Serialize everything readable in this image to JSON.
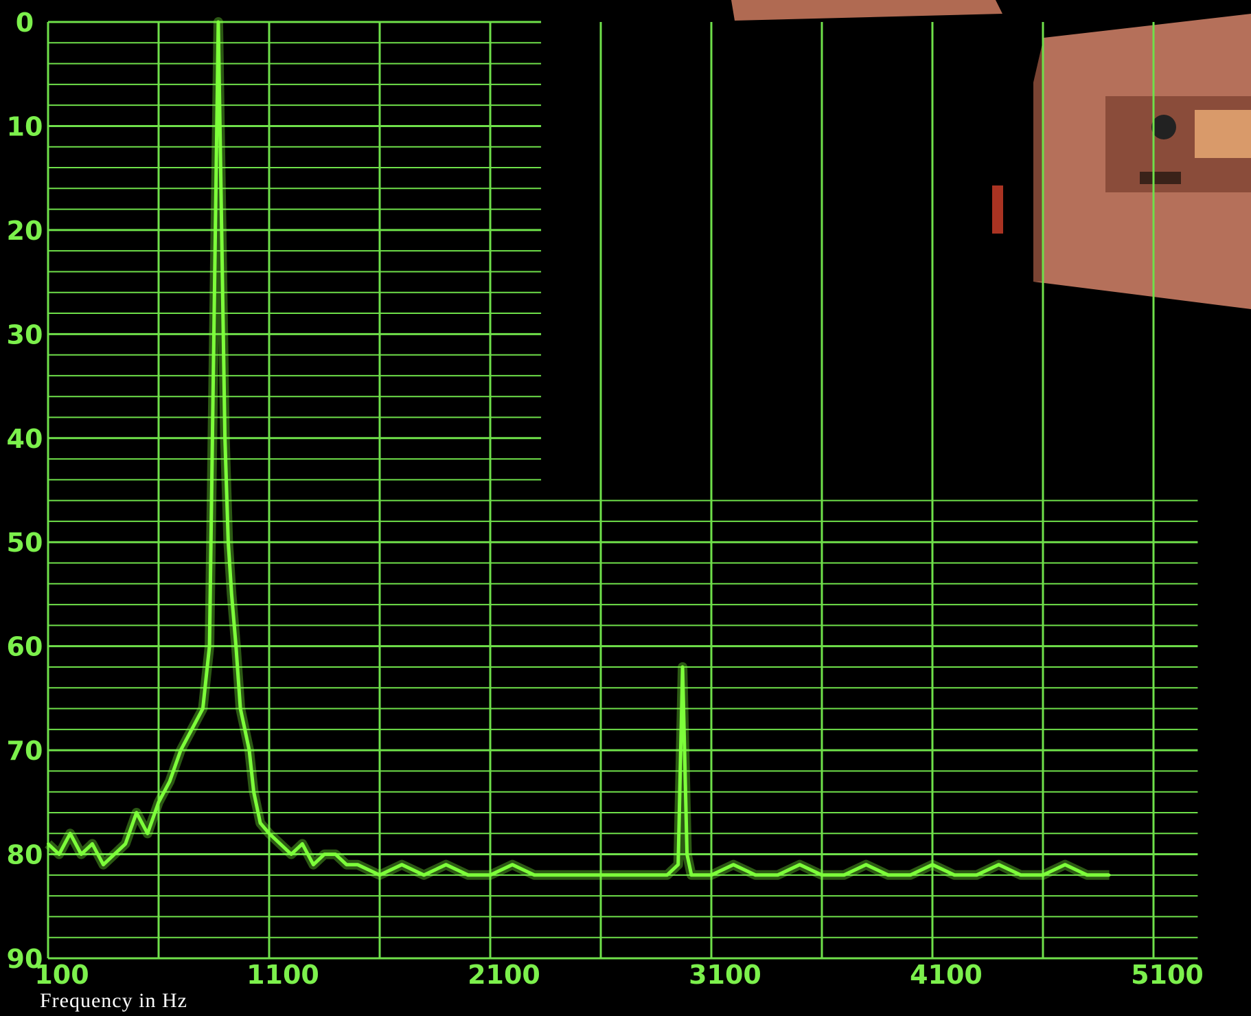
{
  "colors": {
    "grid": "#6fe04a",
    "trace": "#7dff3a",
    "background": "#000000",
    "equipment": "#b5705a",
    "axis_text": "#7cf04c",
    "xlabel_text": "#ffffff"
  },
  "chart_data": {
    "type": "line",
    "title": "",
    "xlabel": "Frequency in Hz",
    "ylabel": "",
    "xlim": [
      100,
      5800
    ],
    "ylim": [
      0,
      90
    ],
    "y_inverted": true,
    "grid": true,
    "x_ticks": [
      "100",
      "1100",
      "2100",
      "3100",
      "4100",
      "5100"
    ],
    "y_ticks": [
      "0",
      "10",
      "20",
      "30",
      "40",
      "50",
      "60",
      "70",
      "80",
      "90"
    ],
    "series": [
      {
        "values_note": "",
        "x": [
          100,
          150,
          200,
          250,
          300,
          350,
          400,
          450,
          500,
          550,
          600,
          650,
          700,
          750,
          800,
          830,
          850,
          870,
          885,
          900,
          915,
          930,
          950,
          970,
          990,
          1010,
          1030,
          1060,
          1100,
          1150,
          1200,
          1250,
          1300,
          1350,
          1400,
          1450,
          1500,
          1600,
          1700,
          1800,
          1900,
          2000,
          2100,
          2200,
          2300,
          2400,
          2500,
          2600,
          2700,
          2800,
          2900,
          2950,
          2970,
          2990,
          3010,
          3050,
          3100,
          3200,
          3300,
          3400,
          3500,
          3600,
          3700,
          3800,
          3900,
          4000,
          4100,
          4200,
          4300,
          4400,
          4500,
          4600,
          4700,
          4800,
          4900
        ],
        "y": [
          79,
          80,
          78,
          80,
          79,
          81,
          80,
          79,
          76,
          78,
          75,
          73,
          70,
          68,
          66,
          60,
          30,
          0,
          20,
          40,
          50,
          55,
          60,
          66,
          68,
          70,
          74,
          77,
          78,
          79,
          80,
          79,
          81,
          80,
          80,
          81,
          81,
          82,
          81,
          82,
          81,
          82,
          82,
          81,
          82,
          82,
          82,
          82,
          82,
          82,
          82,
          81,
          62,
          80,
          82,
          82,
          82,
          81,
          82,
          82,
          81,
          82,
          82,
          81,
          82,
          82,
          81,
          82,
          82,
          81,
          82,
          82,
          81,
          82,
          82
        ]
      }
    ]
  }
}
